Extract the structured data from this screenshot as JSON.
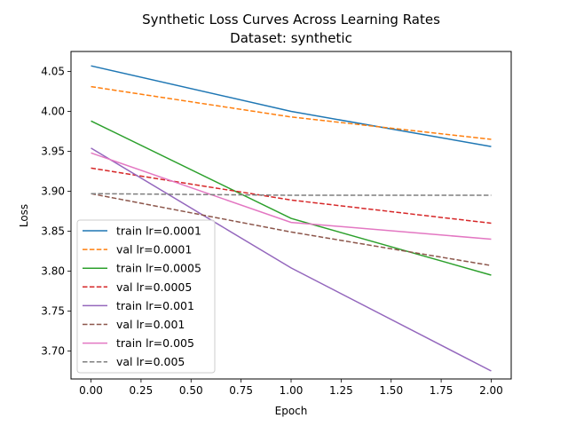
{
  "chart_data": {
    "type": "line",
    "title": "Synthetic Loss Curves Across Learning Rates",
    "subtitle": "Dataset: synthetic",
    "xlabel": "Epoch",
    "ylabel": "Loss",
    "x": [
      0,
      1,
      2
    ],
    "xlim": [
      -0.1,
      2.1
    ],
    "ylim": [
      3.665,
      4.075
    ],
    "xticks": [
      "0.00",
      "0.25",
      "0.50",
      "0.75",
      "1.00",
      "1.25",
      "1.50",
      "1.75",
      "2.00"
    ],
    "xtick_values": [
      0,
      0.25,
      0.5,
      0.75,
      1.0,
      1.25,
      1.5,
      1.75,
      2.0
    ],
    "yticks": [
      "3.70",
      "3.75",
      "3.80",
      "3.85",
      "3.90",
      "3.95",
      "4.00",
      "4.05"
    ],
    "ytick_values": [
      3.7,
      3.75,
      3.8,
      3.85,
      3.9,
      3.95,
      4.0,
      4.05
    ],
    "grid": false,
    "legend_position": "lower-left",
    "series": [
      {
        "name": "train lr=0.0001",
        "values": [
          4.057,
          4.0,
          3.956
        ],
        "color": "#1f77b4",
        "style": "solid"
      },
      {
        "name": "val lr=0.0001",
        "values": [
          4.031,
          3.993,
          3.965
        ],
        "color": "#ff7f0e",
        "style": "dashed"
      },
      {
        "name": "train lr=0.0005",
        "values": [
          3.988,
          3.866,
          3.795
        ],
        "color": "#2ca02c",
        "style": "solid"
      },
      {
        "name": "val lr=0.0005",
        "values": [
          3.929,
          3.889,
          3.86
        ],
        "color": "#d62728",
        "style": "dashed"
      },
      {
        "name": "train lr=0.001",
        "values": [
          3.954,
          3.804,
          3.675
        ],
        "color": "#9467bd",
        "style": "solid"
      },
      {
        "name": "val lr=0.001",
        "values": [
          3.897,
          3.849,
          3.807
        ],
        "color": "#8c564b",
        "style": "dashed"
      },
      {
        "name": "train lr=0.005",
        "values": [
          3.948,
          3.861,
          3.84
        ],
        "color": "#e377c2",
        "style": "solid"
      },
      {
        "name": "val lr=0.005",
        "values": [
          3.897,
          3.895,
          3.895
        ],
        "color": "#7f7f7f",
        "style": "dashed"
      }
    ]
  }
}
